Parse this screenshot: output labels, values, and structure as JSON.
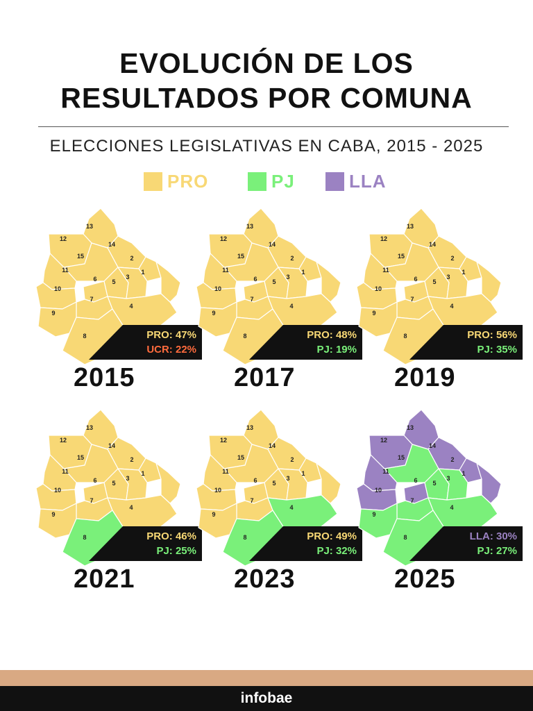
{
  "title_lines": [
    "EVOLUCIÓN DE LOS",
    "RESULTADOS POR COMUNA"
  ],
  "subtitle": "ELECCIONES LEGISLATIVAS EN CABA, 2015 - 2025",
  "legend": [
    {
      "label": "PRO",
      "color": "#f8d875"
    },
    {
      "label": "PJ",
      "color": "#7af07a"
    },
    {
      "label": "LLA",
      "color": "#9b82c2"
    }
  ],
  "colors": {
    "PRO": "#f8d875",
    "PJ": "#7af07a",
    "LLA": "#9b82c2",
    "UCR": "#ff6b3d"
  },
  "comuna_labels": [
    "1",
    "2",
    "3",
    "4",
    "5",
    "6",
    "7",
    "8",
    "9",
    "10",
    "11",
    "12",
    "13",
    "14",
    "15"
  ],
  "elections": [
    {
      "year": "2015",
      "results": [
        {
          "text": "PRO: 47%",
          "party": "PRO"
        },
        {
          "text": "UCR: 22%",
          "party": "UCR"
        }
      ],
      "winners": {
        "1": "PRO",
        "2": "PRO",
        "3": "PRO",
        "4": "PRO",
        "5": "PRO",
        "6": "PRO",
        "7": "PRO",
        "8": "PRO",
        "9": "PRO",
        "10": "PRO",
        "11": "PRO",
        "12": "PRO",
        "13": "PRO",
        "14": "PRO",
        "15": "PRO"
      }
    },
    {
      "year": "2017",
      "results": [
        {
          "text": "PRO: 48%",
          "party": "PRO"
        },
        {
          "text": "PJ: 19%",
          "party": "PJ"
        }
      ],
      "winners": {
        "1": "PRO",
        "2": "PRO",
        "3": "PRO",
        "4": "PRO",
        "5": "PRO",
        "6": "PRO",
        "7": "PRO",
        "8": "PRO",
        "9": "PRO",
        "10": "PRO",
        "11": "PRO",
        "12": "PRO",
        "13": "PRO",
        "14": "PRO",
        "15": "PRO"
      }
    },
    {
      "year": "2019",
      "results": [
        {
          "text": "PRO: 56%",
          "party": "PRO"
        },
        {
          "text": "PJ: 35%",
          "party": "PJ"
        }
      ],
      "winners": {
        "1": "PRO",
        "2": "PRO",
        "3": "PRO",
        "4": "PRO",
        "5": "PRO",
        "6": "PRO",
        "7": "PRO",
        "8": "PRO",
        "9": "PRO",
        "10": "PRO",
        "11": "PRO",
        "12": "PRO",
        "13": "PRO",
        "14": "PRO",
        "15": "PRO"
      }
    },
    {
      "year": "2021",
      "results": [
        {
          "text": "PRO: 46%",
          "party": "PRO"
        },
        {
          "text": "PJ: 25%",
          "party": "PJ"
        }
      ],
      "winners": {
        "1": "PRO",
        "2": "PRO",
        "3": "PRO",
        "4": "PRO",
        "5": "PRO",
        "6": "PRO",
        "7": "PRO",
        "8": "PJ",
        "9": "PRO",
        "10": "PRO",
        "11": "PRO",
        "12": "PRO",
        "13": "PRO",
        "14": "PRO",
        "15": "PRO"
      }
    },
    {
      "year": "2023",
      "results": [
        {
          "text": "PRO: 49%",
          "party": "PRO"
        },
        {
          "text": "PJ: 32%",
          "party": "PJ"
        }
      ],
      "winners": {
        "1": "PRO",
        "2": "PRO",
        "3": "PRO",
        "4": "PJ",
        "5": "PRO",
        "6": "PRO",
        "7": "PRO",
        "8": "PJ",
        "9": "PRO",
        "10": "PRO",
        "11": "PRO",
        "12": "PRO",
        "13": "PRO",
        "14": "PRO",
        "15": "PRO"
      }
    },
    {
      "year": "2025",
      "results": [
        {
          "text": "LLA: 30%",
          "party": "LLA"
        },
        {
          "text": "PJ: 27%",
          "party": "PJ"
        }
      ],
      "winners": {
        "1": "LLA",
        "2": "LLA",
        "3": "PJ",
        "4": "PJ",
        "5": "PJ",
        "6": "LLA",
        "7": "PJ",
        "8": "PJ",
        "9": "PJ",
        "10": "LLA",
        "11": "LLA",
        "12": "LLA",
        "13": "LLA",
        "14": "LLA",
        "15": "PJ"
      }
    }
  ],
  "footer": {
    "brand": "infobae"
  }
}
